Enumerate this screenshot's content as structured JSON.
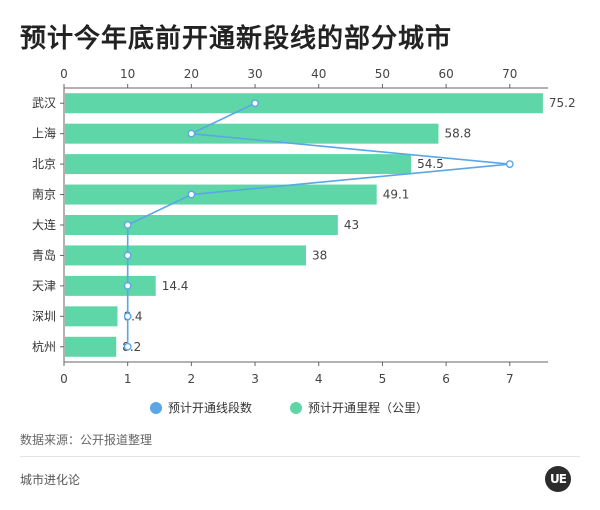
{
  "page": {
    "title": "预计今年底前开通新段线的部分城市",
    "source": "数据来源：公开报道整理",
    "brand": "城市进化论",
    "logo_text": "UE"
  },
  "colors": {
    "bars": "#5fd6a8",
    "line": "#5aa6e6",
    "axis": "#666666"
  },
  "chart_data": {
    "type": "bar",
    "categories": [
      "武汉",
      "上海",
      "北京",
      "南京",
      "大连",
      "青岛",
      "天津",
      "深圳",
      "杭州"
    ],
    "series": [
      {
        "name": "预计开通里程（公里）",
        "type": "bar",
        "axis": "top",
        "values": [
          75.2,
          58.8,
          54.5,
          49.1,
          43,
          38,
          14.4,
          8.4,
          8.2
        ],
        "labels": [
          "75.2",
          "58.8",
          "54.5",
          "49.1",
          "43",
          "38",
          "14.4",
          "8.4",
          "8.2"
        ]
      },
      {
        "name": "预计开通线段数",
        "type": "line",
        "axis": "bottom",
        "values": [
          3,
          2,
          7,
          2,
          1,
          1,
          1,
          1,
          1
        ]
      }
    ],
    "top_axis": {
      "range": [
        0,
        76
      ],
      "ticks": [
        "0",
        "10",
        "20",
        "30",
        "40",
        "50",
        "60",
        "70"
      ]
    },
    "bottom_axis": {
      "range": [
        0,
        7.6
      ],
      "ticks": [
        "0",
        "1",
        "2",
        "3",
        "4",
        "5",
        "6",
        "7"
      ]
    },
    "legend_position": "bottom-center",
    "grid": false
  }
}
